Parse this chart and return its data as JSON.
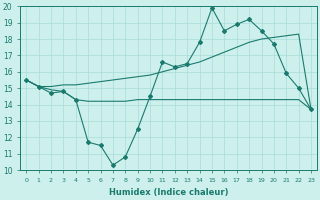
{
  "xlabel": "Humidex (Indice chaleur)",
  "x": [
    0,
    1,
    2,
    3,
    4,
    5,
    6,
    7,
    8,
    9,
    10,
    11,
    12,
    13,
    14,
    15,
    16,
    17,
    18,
    19,
    20,
    21,
    22,
    23
  ],
  "line1": [
    15.5,
    15.1,
    14.7,
    14.8,
    14.3,
    11.7,
    11.5,
    10.3,
    10.8,
    12.5,
    14.5,
    16.6,
    16.3,
    16.5,
    17.8,
    19.9,
    18.5,
    18.9,
    19.2,
    18.5,
    17.7,
    15.9,
    15.0,
    13.7
  ],
  "line2": [
    15.5,
    15.1,
    15.1,
    15.2,
    15.2,
    15.3,
    15.4,
    15.5,
    15.6,
    15.7,
    15.8,
    16.0,
    16.2,
    16.4,
    16.6,
    16.9,
    17.2,
    17.5,
    17.8,
    18.0,
    18.1,
    18.2,
    18.3,
    13.7
  ],
  "line3": [
    15.5,
    15.1,
    14.9,
    14.8,
    14.3,
    14.2,
    14.2,
    14.2,
    14.2,
    14.3,
    14.3,
    14.3,
    14.3,
    14.3,
    14.3,
    14.3,
    14.3,
    14.3,
    14.3,
    14.3,
    14.3,
    14.3,
    14.3,
    13.7
  ],
  "line_color": "#1a7a6e",
  "bg_color": "#cef0ec",
  "grid_color": "#a8ddd8",
  "ylim": [
    10,
    20
  ],
  "yticks": [
    10,
    11,
    12,
    13,
    14,
    15,
    16,
    17,
    18,
    19,
    20
  ],
  "xticks": [
    0,
    1,
    2,
    3,
    4,
    5,
    6,
    7,
    8,
    9,
    10,
    11,
    12,
    13,
    14,
    15,
    16,
    17,
    18,
    19,
    20,
    21,
    22,
    23
  ]
}
